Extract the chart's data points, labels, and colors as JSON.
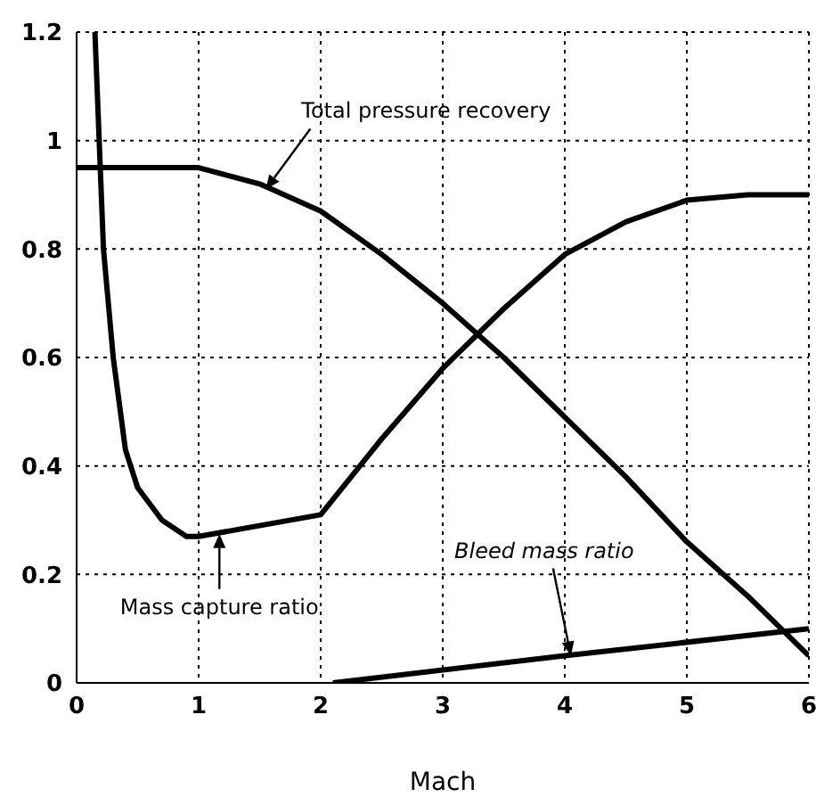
{
  "chart_data": {
    "type": "line",
    "xlabel": "Mach",
    "xlim": [
      0,
      6
    ],
    "xticks": [
      0,
      1,
      2,
      3,
      4,
      5,
      6
    ],
    "ylim": [
      0,
      1.2
    ],
    "yticks": [
      0,
      0.2,
      0.4,
      0.6,
      0.8,
      1,
      1.2
    ],
    "grid": true,
    "marker": "none",
    "line_style": "solid",
    "series": [
      {
        "color": "#000000",
        "x": [
          0,
          1,
          1.5,
          2,
          2.5,
          3,
          3.5,
          4,
          4.5,
          5,
          5.5,
          6
        ],
        "values": [
          0.95,
          0.95,
          0.92,
          0.87,
          0.79,
          0.7,
          0.6,
          0.49,
          0.38,
          0.26,
          0.16,
          0.05
        ]
      },
      {
        "color": "#000000",
        "x": [
          0.15,
          0.22,
          0.3,
          0.4,
          0.5,
          0.7,
          0.9,
          1,
          2,
          2.5,
          3,
          3.5,
          4,
          4.5,
          5,
          5.5,
          6
        ],
        "values": [
          1.2,
          0.8,
          0.6,
          0.43,
          0.36,
          0.3,
          0.27,
          0.27,
          0.31,
          0.45,
          0.58,
          0.69,
          0.79,
          0.85,
          0.89,
          0.9,
          0.9
        ]
      },
      {
        "color": "#000000",
        "x": [
          2.1,
          4,
          6
        ],
        "values": [
          0,
          0.05,
          0.1
        ]
      }
    ],
    "annotations": [
      {
        "text": "Total pressure recovery",
        "x": 1.55,
        "y": 0.91
      },
      {
        "text": "Mass capture ratio",
        "x": 1.17,
        "y": 0.275
      },
      {
        "text": "Bleed mass ratio",
        "x": 4.05,
        "y": 0.05
      }
    ]
  }
}
